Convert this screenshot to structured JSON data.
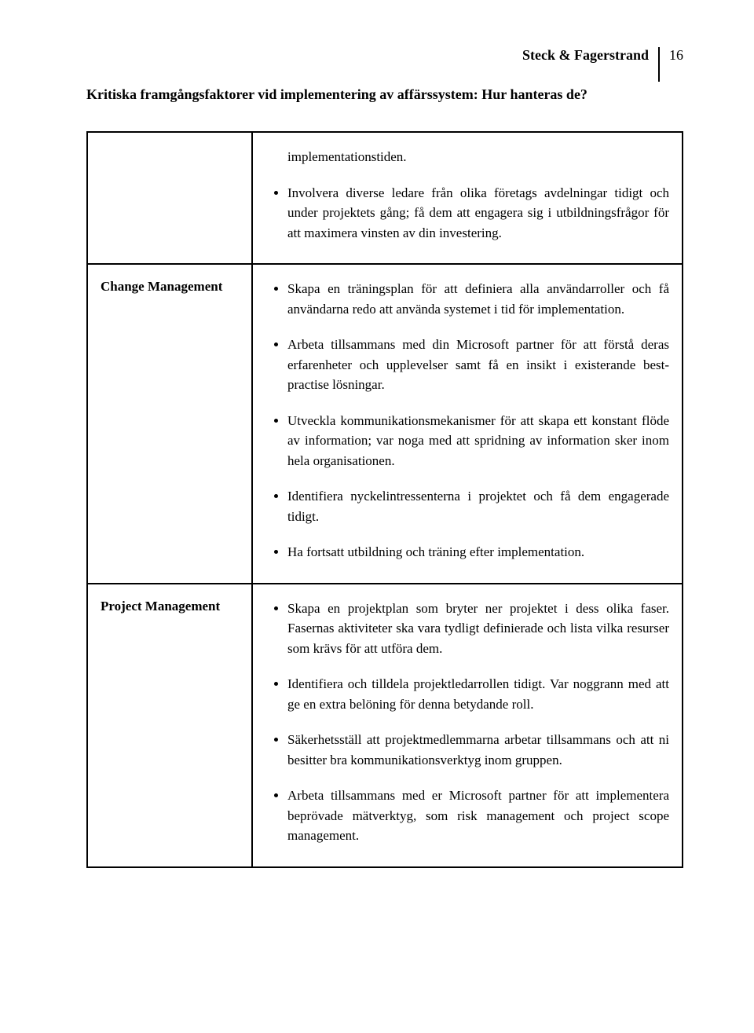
{
  "header": {
    "authors": "Steck & Fagerstrand",
    "page_number": "16",
    "subtitle": "Kritiska framgångsfaktorer vid implementering av affärssystem: Hur hanteras de?"
  },
  "row1": {
    "label": "",
    "intro": "implementationstiden.",
    "bullets": [
      "Involvera diverse ledare från olika företags avdelningar tidigt och under projektets gång; få dem att engagera sig i utbildningsfrågor för att maximera vinsten av din investering."
    ]
  },
  "row2": {
    "label": "Change Management",
    "bullets": [
      "Skapa en träningsplan för att definiera alla användarroller och få användarna redo att använda systemet i tid för implementation.",
      "Arbeta tillsammans med din Microsoft partner för att förstå deras erfarenheter och upplevelser samt få en insikt i existerande best-practise lösningar.",
      "Utveckla kommunikationsmekanismer för att skapa ett konstant flöde av information; var noga med att spridning av information sker inom hela organisationen.",
      "Identifiera nyckelintressenterna i projektet och få dem engagerade tidigt.",
      "Ha fortsatt utbildning och träning efter implementation."
    ]
  },
  "row3": {
    "label": "Project Management",
    "bullets": [
      "Skapa en projektplan som bryter ner projektet i dess olika faser. Fasernas aktiviteter ska vara tydligt definierade och lista vilka resurser som krävs för att utföra dem.",
      "Identifiera och tilldela projektledarrollen tidigt. Var noggrann med att ge en extra belöning för denna betydande roll.",
      "Säkerhetsställ att projektmedlemmarna arbetar tillsammans och att ni besitter bra kommunikationsverktyg inom gruppen.",
      "Arbeta tillsammans med er Microsoft partner för att implementera beprövade mätverktyg, som risk management och project scope management."
    ]
  }
}
